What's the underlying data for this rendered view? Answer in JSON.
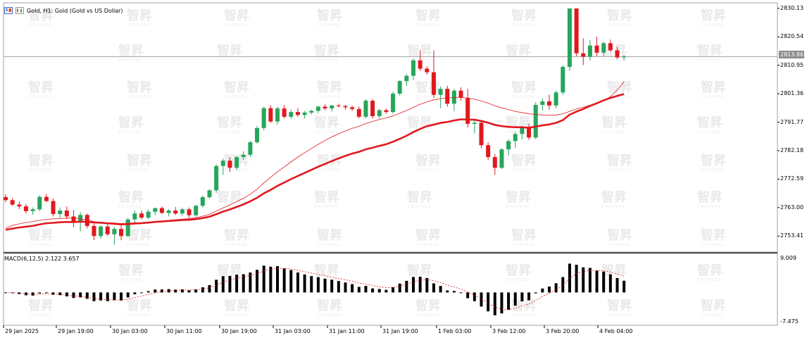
{
  "header": {
    "title": "Gold, H1:  Gold (Gold vs US Dollar)",
    "icon": "window-icon"
  },
  "price_axis": {
    "labels": [
      "2830.13",
      "2820.54",
      "2810.95",
      "2801.36",
      "2791.77",
      "2782.18",
      "2772.59",
      "2763.00",
      "2753.41"
    ],
    "current_price": "2813.86"
  },
  "macd": {
    "label": "MACD(6,12,5) 2.122 3.657",
    "axis_labels": [
      "9.009",
      "-7.475"
    ]
  },
  "time_axis": {
    "labels": [
      "29 Jan 2025",
      "29 Jan 19:00",
      "30 Jan 03:00",
      "30 Jan 11:00",
      "30 Jan 19:00",
      "31 Jan 03:00",
      "31 Jan 11:00",
      "31 Jan 19:00",
      "1 Feb 03:00",
      "3 Feb 12:00",
      "3 Feb 20:00",
      "4 Feb 04:00"
    ]
  },
  "watermark": {
    "text": "智昇",
    "subtext": "ZHISHENG"
  },
  "colors": {
    "bull": "#26a65b",
    "bear": "#e0191f",
    "ma_slow": "#e0191f",
    "ma_fast": "#e0191f",
    "grid": "#c8c8c8",
    "macd_hist": "#000000",
    "macd_signal": "#e0191f"
  },
  "chart_data": {
    "type": "candlestick",
    "symbol": "Gold",
    "timeframe": "H1",
    "ylim": [
      2748,
      2832
    ],
    "candles": [
      [
        2766.5,
        2767.5,
        2764.8,
        2765.5
      ],
      [
        2765.5,
        2766.2,
        2763.6,
        2764.0
      ],
      [
        2764.0,
        2765.0,
        2762.5,
        2763.4
      ],
      [
        2763.4,
        2764.2,
        2761.0,
        2761.8
      ],
      [
        2761.8,
        2763.0,
        2760.6,
        2762.4
      ],
      [
        2762.4,
        2767.2,
        2761.8,
        2766.6
      ],
      [
        2766.6,
        2767.6,
        2764.8,
        2765.2
      ],
      [
        2765.2,
        2766.0,
        2760.0,
        2760.8
      ],
      [
        2760.8,
        2763.0,
        2759.4,
        2762.0
      ],
      [
        2762.0,
        2763.4,
        2759.0,
        2760.0
      ],
      [
        2760.0,
        2762.2,
        2756.4,
        2758.0
      ],
      [
        2758.0,
        2761.5,
        2755.0,
        2760.5
      ],
      [
        2760.5,
        2761.0,
        2756.0,
        2756.8
      ],
      [
        2756.8,
        2757.5,
        2752.0,
        2753.4
      ],
      [
        2753.4,
        2757.0,
        2752.5,
        2756.6
      ],
      [
        2756.6,
        2758.0,
        2753.5,
        2754.0
      ],
      [
        2754.0,
        2756.5,
        2750.5,
        2755.8
      ],
      [
        2755.8,
        2757.0,
        2752.0,
        2753.4
      ],
      [
        2753.4,
        2759.5,
        2753.0,
        2759.0
      ],
      [
        2759.0,
        2762.0,
        2758.0,
        2761.0
      ],
      [
        2761.0,
        2762.0,
        2759.0,
        2759.6
      ],
      [
        2759.6,
        2762.4,
        2759.0,
        2761.6
      ],
      [
        2761.6,
        2763.0,
        2760.4,
        2762.8
      ],
      [
        2762.8,
        2763.4,
        2760.8,
        2761.2
      ],
      [
        2761.2,
        2762.5,
        2760.0,
        2762.0
      ],
      [
        2762.0,
        2763.2,
        2760.5,
        2761.0
      ],
      [
        2761.0,
        2763.0,
        2760.2,
        2762.4
      ],
      [
        2762.4,
        2763.0,
        2759.5,
        2760.4
      ],
      [
        2760.4,
        2764.0,
        2759.8,
        2763.6
      ],
      [
        2763.6,
        2767.0,
        2763.0,
        2766.5
      ],
      [
        2766.5,
        2769.2,
        2766.0,
        2768.8
      ],
      [
        2768.8,
        2777.5,
        2768.0,
        2777.0
      ],
      [
        2777.0,
        2779.5,
        2774.0,
        2778.8
      ],
      [
        2778.8,
        2780.0,
        2775.0,
        2776.4
      ],
      [
        2776.4,
        2780.5,
        2775.6,
        2780.0
      ],
      [
        2780.0,
        2782.0,
        2779.0,
        2780.8
      ],
      [
        2780.8,
        2785.5,
        2780.0,
        2785.0
      ],
      [
        2785.0,
        2790.5,
        2784.5,
        2789.8
      ],
      [
        2789.8,
        2797.0,
        2789.0,
        2796.5
      ],
      [
        2796.5,
        2797.5,
        2791.5,
        2792.0
      ],
      [
        2792.0,
        2797.0,
        2791.0,
        2796.4
      ],
      [
        2796.4,
        2797.5,
        2793.0,
        2793.6
      ],
      [
        2793.6,
        2796.0,
        2792.8,
        2795.2
      ],
      [
        2795.2,
        2796.5,
        2793.6,
        2794.2
      ],
      [
        2794.2,
        2795.6,
        2793.0,
        2795.0
      ],
      [
        2795.0,
        2796.0,
        2794.4,
        2795.6
      ],
      [
        2795.6,
        2797.4,
        2794.8,
        2797.0
      ],
      [
        2797.0,
        2797.8,
        2795.8,
        2796.4
      ],
      [
        2796.4,
        2797.6,
        2795.4,
        2797.4
      ],
      [
        2797.4,
        2798.0,
        2796.8,
        2797.2
      ],
      [
        2797.2,
        2797.6,
        2796.0,
        2796.8
      ],
      [
        2796.8,
        2797.4,
        2795.6,
        2796.2
      ],
      [
        2796.2,
        2797.0,
        2793.0,
        2793.6
      ],
      [
        2793.6,
        2799.5,
        2793.0,
        2799.0
      ],
      [
        2799.0,
        2799.5,
        2793.0,
        2793.8
      ],
      [
        2793.8,
        2796.2,
        2793.0,
        2795.8
      ],
      [
        2795.8,
        2796.4,
        2794.6,
        2795.2
      ],
      [
        2795.2,
        2802.0,
        2794.6,
        2801.4
      ],
      [
        2801.4,
        2806.0,
        2800.8,
        2805.6
      ],
      [
        2805.6,
        2808.0,
        2804.0,
        2807.4
      ],
      [
        2807.4,
        2813.2,
        2806.0,
        2812.6
      ],
      [
        2812.6,
        2816.0,
        2809.0,
        2809.8
      ],
      [
        2809.8,
        2810.6,
        2807.8,
        2808.6
      ],
      [
        2808.6,
        2816.0,
        2800.0,
        2801.0
      ],
      [
        2801.0,
        2803.8,
        2796.5,
        2803.0
      ],
      [
        2803.0,
        2804.0,
        2797.0,
        2798.0
      ],
      [
        2798.0,
        2803.0,
        2795.5,
        2802.4
      ],
      [
        2802.4,
        2803.5,
        2799.0,
        2800.0
      ],
      [
        2800.0,
        2803.0,
        2790.0,
        2791.2
      ],
      [
        2791.2,
        2793.0,
        2788.0,
        2791.6
      ],
      [
        2791.6,
        2792.5,
        2783.0,
        2784.0
      ],
      [
        2784.0,
        2785.0,
        2779.0,
        2780.0
      ],
      [
        2780.0,
        2781.0,
        2774.0,
        2776.4
      ],
      [
        2776.4,
        2783.0,
        2776.0,
        2782.6
      ],
      [
        2782.6,
        2786.0,
        2780.5,
        2785.4
      ],
      [
        2785.4,
        2788.5,
        2783.0,
        2787.8
      ],
      [
        2787.8,
        2790.5,
        2786.0,
        2790.0
      ],
      [
        2790.0,
        2791.2,
        2785.8,
        2786.6
      ],
      [
        2786.6,
        2798.5,
        2786.0,
        2797.6
      ],
      [
        2797.6,
        2799.8,
        2795.6,
        2798.8
      ],
      [
        2798.8,
        2801.0,
        2796.0,
        2797.4
      ],
      [
        2797.4,
        2802.5,
        2796.5,
        2801.8
      ],
      [
        2801.8,
        2811.0,
        2801.0,
        2810.4
      ],
      [
        2810.4,
        2830.1,
        2809.0,
        2830.1
      ],
      [
        2830.1,
        2830.1,
        2814.0,
        2815.0
      ],
      [
        2815.0,
        2820.0,
        2811.0,
        2813.8
      ],
      [
        2813.8,
        2819.5,
        2812.5,
        2817.6
      ],
      [
        2817.6,
        2820.6,
        2814.0,
        2815.2
      ],
      [
        2815.2,
        2819.0,
        2814.0,
        2818.4
      ],
      [
        2818.4,
        2819.6,
        2815.5,
        2816.0
      ],
      [
        2816.0,
        2817.2,
        2813.0,
        2813.6
      ],
      [
        2813.6,
        2814.4,
        2812.6,
        2813.9
      ]
    ],
    "ma_fast": [
      2756,
      2757,
      2757.5,
      2758,
      2758.3,
      2758.7,
      2759,
      2759.2,
      2759.3,
      2759.4,
      2759.5,
      2759.2,
      2758.8,
      2758.3,
      2757.9,
      2757.6,
      2757.3,
      2757.1,
      2757.2,
      2757.4,
      2757.6,
      2757.9,
      2758.2,
      2758.5,
      2758.7,
      2758.9,
      2759.1,
      2759.3,
      2759.6,
      2760.1,
      2760.7,
      2761.8,
      2762.9,
      2763.9,
      2765,
      2766.1,
      2767.5,
      2769.2,
      2771.3,
      2773.2,
      2775,
      2776.7,
      2778.4,
      2780,
      2781.5,
      2782.9,
      2784.3,
      2785.6,
      2786.8,
      2787.9,
      2788.8,
      2789.7,
      2790.4,
      2791.3,
      2792,
      2792.7,
      2793.2,
      2793.9,
      2794.8,
      2795.7,
      2796.8,
      2797.8,
      2798.6,
      2799.3,
      2799.7,
      2799.9,
      2800.1,
      2800.2,
      2799.8,
      2799.5,
      2798.9,
      2798.2,
      2797.3,
      2796.6,
      2796,
      2795.4,
      2795,
      2794.6,
      2794.4,
      2794.2,
      2794.1,
      2794.2,
      2794.6,
      2795.4,
      2796.2,
      2796.8,
      2797.5,
      2798.2,
      2799,
      2800.4,
      2802.6,
      2805.4
    ]
  }
}
